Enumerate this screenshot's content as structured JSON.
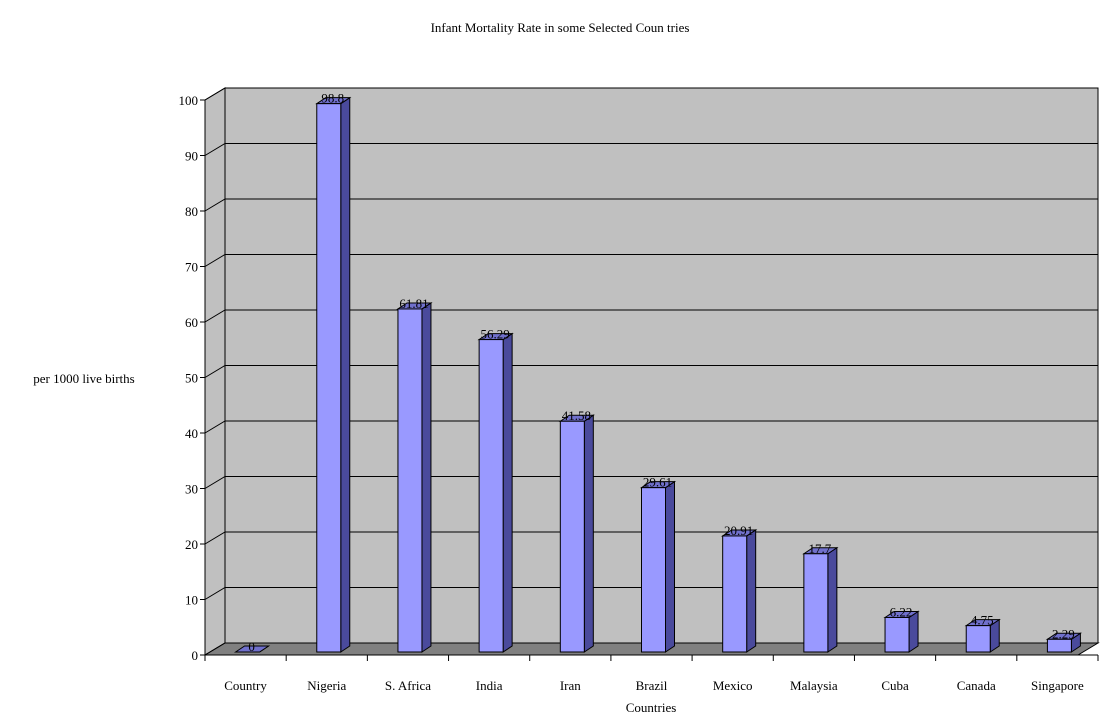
{
  "chart_data": {
    "type": "bar",
    "title": "Infant Mortality Rate in some Selected Coun tries",
    "xlabel": "Countries",
    "ylabel": "per 1000 live births",
    "categories": [
      "Country",
      "Nigeria",
      "S. Africa",
      "India",
      "Iran",
      "Brazil",
      "Mexico",
      "Malaysia",
      "Cuba",
      "Canada",
      "Singapore"
    ],
    "values": [
      0,
      98.8,
      61.81,
      56.29,
      41.58,
      29.61,
      20.91,
      17.7,
      6.22,
      4.75,
      2.29
    ],
    "value_labels": [
      "0",
      "98.8",
      "61.81",
      "56.29",
      "41.58",
      "29.61",
      "20.91",
      "17.7",
      "6.22",
      "4.75",
      "2.29"
    ],
    "ylim": [
      0,
      100
    ],
    "yticks": [
      0,
      10,
      20,
      30,
      40,
      50,
      60,
      70,
      80,
      90,
      100
    ],
    "grid": true,
    "legend": "none",
    "style": "3d-column",
    "colors": {
      "bar_front": "#9999ff",
      "bar_side": "#4a4a9c",
      "bar_top": "#7070cc",
      "back_wall": "#c0c0c0",
      "floor": "#808080",
      "grid": "#000000"
    }
  }
}
